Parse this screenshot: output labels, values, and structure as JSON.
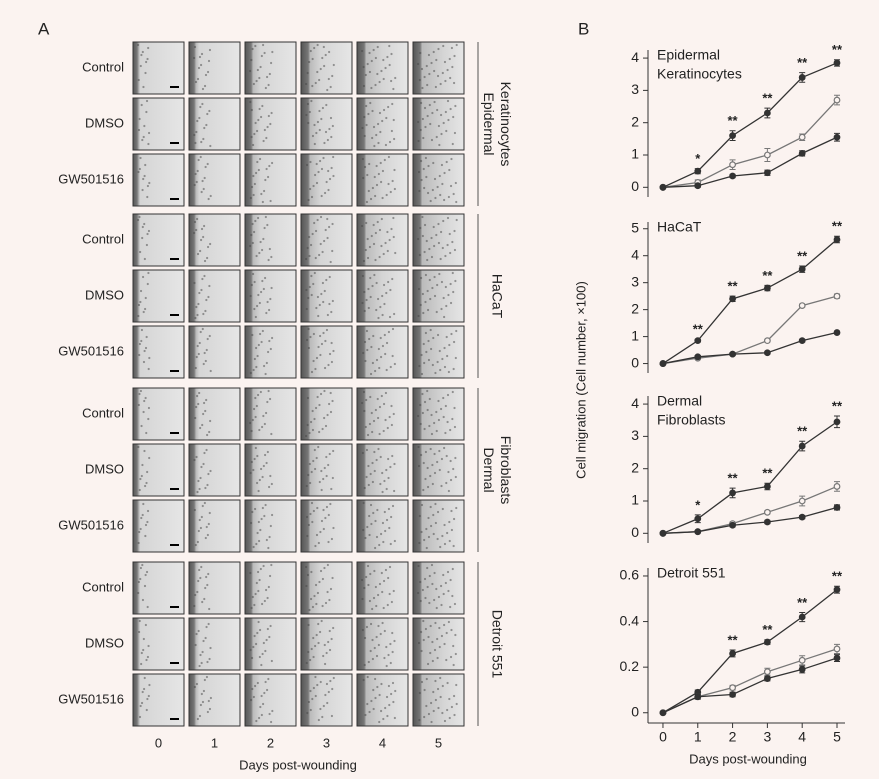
{
  "panel_a": {
    "label": "A",
    "x_label": "Days post-wounding",
    "columns": [
      "0",
      "1",
      "2",
      "3",
      "4",
      "5"
    ],
    "groups": [
      {
        "name": [
          "Epidermal",
          "Keratinocytes"
        ],
        "rows": [
          "Control",
          "DMSO",
          "GW501516"
        ]
      },
      {
        "name": [
          "HaCaT"
        ],
        "rows": [
          "Control",
          "DMSO",
          "GW501516"
        ]
      },
      {
        "name": [
          "Dermal",
          "Fibroblasts"
        ],
        "rows": [
          "Control",
          "DMSO",
          "GW501516"
        ]
      },
      {
        "name": [
          "Detroit 551"
        ],
        "rows": [
          "Control",
          "DMSO",
          "GW501516"
        ]
      }
    ]
  },
  "panel_b": {
    "label": "B",
    "y_label": "Cell migration (Cell number, ×100)",
    "x_label": "Days post-wounding"
  },
  "chart_data": [
    {
      "type": "line",
      "title": [
        "Epidermal",
        "Keratinocytes"
      ],
      "x": [
        0,
        1,
        2,
        3,
        4,
        5
      ],
      "xlim": [
        -0.43,
        5.23
      ],
      "ylim": [
        -0.3,
        4.25
      ],
      "yticks": [
        0,
        1,
        2,
        3,
        4
      ],
      "series": [
        {
          "color": "#333333",
          "marker": "filled",
          "values": [
            0,
            0.5,
            1.6,
            2.3,
            3.4,
            3.85
          ],
          "errors": [
            0.03,
            0.08,
            0.15,
            0.15,
            0.15,
            0.1
          ]
        },
        {
          "color": "#777777",
          "marker": "open",
          "values": [
            0,
            0.15,
            0.7,
            1.0,
            1.55,
            2.7
          ],
          "errors": [
            0.03,
            0.08,
            0.15,
            0.2,
            0.1,
            0.15
          ]
        },
        {
          "color": "#333333",
          "marker": "filled",
          "values": [
            0,
            0.05,
            0.35,
            0.45,
            1.05,
            1.55
          ],
          "errors": [
            0.03,
            0.05,
            0.05,
            0.08,
            0.08,
            0.12
          ]
        }
      ],
      "annotations": [
        null,
        "*",
        "**",
        "**",
        "**",
        "**"
      ]
    },
    {
      "type": "line",
      "title": [
        "HaCaT"
      ],
      "x": [
        0,
        1,
        2,
        3,
        4,
        5
      ],
      "xlim": [
        -0.43,
        5.23
      ],
      "ylim": [
        -0.35,
        5.25
      ],
      "yticks": [
        0,
        1,
        2,
        3,
        4,
        5
      ],
      "series": [
        {
          "color": "#333333",
          "marker": "filled",
          "values": [
            0,
            0.85,
            2.4,
            2.8,
            3.5,
            4.6
          ],
          "errors": [
            0.03,
            0.05,
            0.1,
            0.1,
            0.12,
            0.12
          ]
        },
        {
          "color": "#777777",
          "marker": "open",
          "values": [
            0,
            0.2,
            0.35,
            0.85,
            2.15,
            2.5
          ],
          "errors": [
            0.03,
            0.05,
            0.05,
            0.05,
            0.05,
            0.08
          ]
        },
        {
          "color": "#333333",
          "marker": "filled",
          "values": [
            0,
            0.25,
            0.35,
            0.4,
            0.85,
            1.15
          ],
          "errors": [
            0.03,
            0.05,
            0.05,
            0.05,
            0.05,
            0.05
          ]
        }
      ],
      "annotations": [
        null,
        "**",
        "**",
        "**",
        "**",
        "**"
      ]
    },
    {
      "type": "line",
      "title": [
        "Dermal",
        "Fibroblasts"
      ],
      "x": [
        0,
        1,
        2,
        3,
        4,
        5
      ],
      "xlim": [
        -0.43,
        5.23
      ],
      "ylim": [
        -0.3,
        4.25
      ],
      "yticks": [
        0,
        1,
        2,
        3,
        4
      ],
      "series": [
        {
          "color": "#333333",
          "marker": "filled",
          "values": [
            0,
            0.45,
            1.25,
            1.45,
            2.7,
            3.45
          ],
          "errors": [
            0.03,
            0.12,
            0.15,
            0.1,
            0.15,
            0.18
          ]
        },
        {
          "color": "#777777",
          "marker": "open",
          "values": [
            0,
            0.05,
            0.3,
            0.65,
            1.0,
            1.45
          ],
          "errors": [
            0.03,
            0.03,
            0.05,
            0.05,
            0.15,
            0.15
          ]
        },
        {
          "color": "#333333",
          "marker": "filled",
          "values": [
            0,
            0.05,
            0.25,
            0.35,
            0.5,
            0.8
          ],
          "errors": [
            0.03,
            0.03,
            0.05,
            0.05,
            0.05,
            0.08
          ]
        }
      ],
      "annotations": [
        null,
        "*",
        "**",
        "**",
        "**",
        "**"
      ]
    },
    {
      "type": "line",
      "title": [
        "Detroit 551"
      ],
      "x": [
        0,
        1,
        2,
        3,
        4,
        5
      ],
      "xlim": [
        -0.43,
        5.23
      ],
      "xticks": [
        0,
        1,
        2,
        3,
        4,
        5
      ],
      "ylim": [
        -0.045,
        0.635
      ],
      "yticks": [
        0,
        0.2,
        0.4,
        0.6
      ],
      "series": [
        {
          "color": "#333333",
          "marker": "filled",
          "values": [
            0,
            0.09,
            0.26,
            0.31,
            0.42,
            0.54
          ],
          "errors": [
            0.003,
            0.01,
            0.015,
            0.01,
            0.02,
            0.015
          ]
        },
        {
          "color": "#777777",
          "marker": "open",
          "values": [
            0,
            0.07,
            0.11,
            0.18,
            0.23,
            0.28
          ],
          "errors": [
            0.003,
            0.01,
            0.01,
            0.015,
            0.02,
            0.02
          ]
        },
        {
          "color": "#333333",
          "marker": "filled",
          "values": [
            0,
            0.07,
            0.08,
            0.15,
            0.19,
            0.24
          ],
          "errors": [
            0.003,
            0.01,
            0.01,
            0.01,
            0.015,
            0.015
          ]
        }
      ],
      "annotations": [
        null,
        null,
        "**",
        "**",
        "**",
        "**"
      ]
    }
  ]
}
